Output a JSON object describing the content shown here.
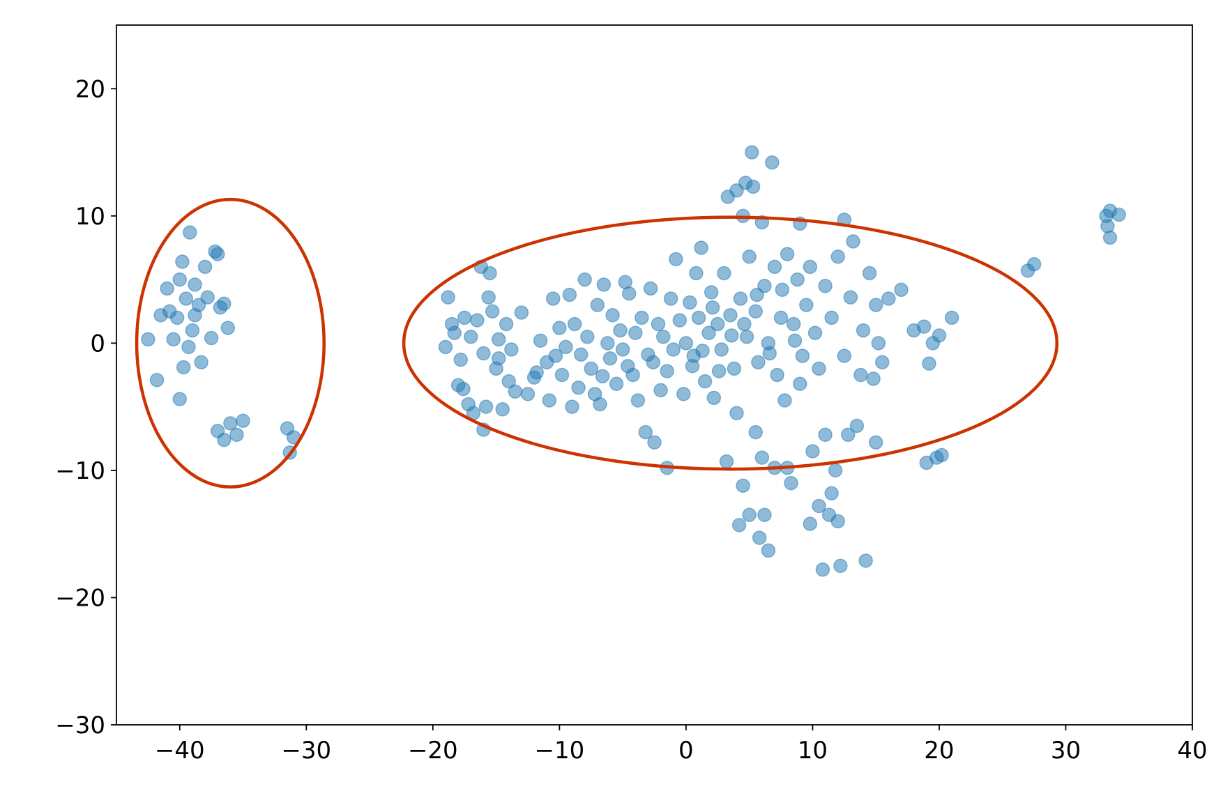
{
  "chart_data": {
    "type": "scatter",
    "color": "#1f77b4",
    "xlim": [
      -45,
      40
    ],
    "ylim": [
      -30,
      25
    ],
    "xticks": [
      {
        "value": -40,
        "label": "−40"
      },
      {
        "value": -30,
        "label": "−30"
      },
      {
        "value": -20,
        "label": "−20"
      },
      {
        "value": -10,
        "label": "−10"
      },
      0,
      10,
      20,
      30,
      40
    ],
    "yticks": [
      {
        "value": -30,
        "label": "−30"
      },
      {
        "value": -20,
        "label": "−20"
      },
      {
        "value": -10,
        "label": "−10"
      },
      0,
      10,
      20
    ],
    "ellipse_color": "#cc3300",
    "ellipses": [
      {
        "cx": -36,
        "cy": 0,
        "rx": 7.4,
        "ry": 11.3
      },
      {
        "cx": 3.5,
        "cy": 0,
        "rx": 25.8,
        "ry": 9.9
      }
    ],
    "x": [
      -42.5,
      -41.8,
      -41.5,
      -41,
      -40.8,
      -40.5,
      -40.2,
      -40,
      -40,
      -39.8,
      -39.5,
      -39.3,
      -39.2,
      -39,
      -38.8,
      -38.5,
      -38.3,
      -38,
      -37.8,
      -37.5,
      -37.2,
      -37,
      -36.8,
      -36.5,
      -36.2,
      -37,
      -36.5,
      -36,
      -35.5,
      -35,
      -31.5,
      -31.3,
      -31,
      -39.7,
      -38.8,
      -19,
      -18.8,
      -18.5,
      -18.3,
      -18,
      -17.8,
      -17.5,
      -17.2,
      -17,
      -16.8,
      -16.5,
      -16.2,
      -16,
      -15.8,
      -15.5,
      -15.3,
      -15,
      -14.8,
      -14.5,
      -14.2,
      -14,
      -13.5,
      -13,
      -12.5,
      -12,
      -16,
      -15.6,
      -14.8,
      -17.6,
      -13.8,
      -11.5,
      -11,
      -10.8,
      -10.5,
      -10,
      -9.8,
      -9.5,
      -9.2,
      -9,
      -8.8,
      -8.5,
      -8,
      -7.8,
      -7.5,
      -7.2,
      -7,
      -6.8,
      -6.5,
      -6.2,
      -6,
      -5.8,
      -5.5,
      -5.2,
      -5,
      -4.8,
      -4.5,
      -4.2,
      -4,
      -3.8,
      -3.5,
      -3.2,
      -3,
      -2.8,
      -2.5,
      -2.2,
      -2,
      -11.8,
      -10.3,
      -8.3,
      -6.6,
      -4.6,
      -2.6,
      -1.8,
      -1.5,
      -1.5,
      -1.2,
      -1,
      -0.8,
      -0.5,
      -0.2,
      0,
      0.3,
      0.5,
      0.8,
      1,
      1.2,
      1.5,
      1.8,
      2,
      2.2,
      2.5,
      2.8,
      3,
      3.2,
      3.3,
      3.5,
      3.8,
      4,
      4,
      4.2,
      4.3,
      4.5,
      4.5,
      4.7,
      4.8,
      5,
      5,
      5.2,
      5.3,
      5.5,
      5.5,
      5.7,
      5.8,
      6,
      6,
      6.2,
      6.2,
      6.5,
      6.5,
      6.8,
      7,
      7,
      7.2,
      7.5,
      7.8,
      8,
      8,
      8.3,
      8.5,
      8.8,
      9,
      9,
      9.2,
      9.5,
      9.8,
      9.8,
      10,
      10.2,
      10.5,
      10.5,
      10.8,
      11,
      11,
      11.3,
      11.5,
      11.5,
      11.8,
      12,
      12,
      12.2,
      12.5,
      12.5,
      12.8,
      13,
      13.2,
      13.5,
      13.8,
      14,
      14.2,
      14.5,
      14.8,
      15,
      15,
      15.2,
      15.5,
      16,
      17,
      18,
      18.8,
      19,
      19.2,
      19.5,
      19.8,
      20,
      20.2,
      21,
      27,
      27.5,
      33.2,
      33.3,
      33.5,
      33.5,
      34.2,
      0.6,
      2.6,
      4.6,
      6.6,
      8.6,
      3.6,
      5.6,
      7.6,
      2.1,
      1.3
    ],
    "values": [
      0.3,
      -2.9,
      2.2,
      4.3,
      2.5,
      0.3,
      2,
      -4.4,
      5,
      6.4,
      3.5,
      -0.3,
      8.7,
      1,
      4.6,
      3,
      -1.5,
      6,
      3.6,
      0.4,
      7.2,
      7,
      2.8,
      3.1,
      1.2,
      -6.9,
      -7.6,
      -6.3,
      -7.2,
      -6.1,
      -6.7,
      -8.6,
      -7.4,
      -1.9,
      2.2,
      -0.3,
      3.6,
      1.5,
      0.8,
      -3.3,
      -1.3,
      2,
      -4.8,
      0.5,
      -5.5,
      1.8,
      6,
      -0.8,
      -5,
      5.5,
      2.5,
      -2,
      0.3,
      -5.2,
      1.5,
      -3,
      -3.8,
      2.4,
      -4,
      -2.7,
      -6.8,
      3.6,
      -1.2,
      -3.6,
      -0.5,
      0.2,
      -1.5,
      -4.5,
      3.5,
      1.2,
      -2.5,
      -0.3,
      3.8,
      -5,
      1.5,
      -3.5,
      5,
      0.5,
      -2,
      -4,
      3,
      -4.8,
      4.6,
      0,
      -1.2,
      2.2,
      -3.2,
      1,
      -0.5,
      4.8,
      3.9,
      -2.5,
      0.8,
      -4.5,
      2,
      -7,
      -0.9,
      4.3,
      -7.8,
      1.5,
      -3.7,
      -2.3,
      -1,
      -0.9,
      -2.6,
      -1.8,
      -1.5,
      0.5,
      -2.2,
      -9.8,
      3.5,
      -0.5,
      6.6,
      1.8,
      -4,
      0,
      3.2,
      -1.8,
      5.5,
      2,
      7.5,
      -3,
      0.8,
      4,
      -4.3,
      1.5,
      -0.5,
      5.5,
      -9.3,
      11.5,
      2.2,
      -2,
      12,
      -5.5,
      -14.3,
      3.5,
      10,
      -11.2,
      12.6,
      0.5,
      -13.5,
      6.8,
      15,
      12.3,
      -7,
      2.5,
      -1.5,
      -15.3,
      9.5,
      -9,
      -13.5,
      4.5,
      -16.3,
      0,
      14.2,
      -9.8,
      6,
      -2.5,
      2,
      -4.5,
      7,
      -9.8,
      -11,
      1.5,
      5,
      9.4,
      -3.2,
      -1,
      3,
      -14.2,
      6,
      -8.5,
      0.8,
      -12.8,
      -2,
      -17.8,
      4.5,
      -7.2,
      -13.5,
      2,
      -11.8,
      -10,
      -14,
      6.8,
      -17.5,
      9.7,
      -1,
      -7.2,
      3.6,
      8,
      -6.5,
      -2.5,
      1,
      -17.1,
      5.5,
      -2.8,
      -7.8,
      3,
      0,
      -1.5,
      3.5,
      4.2,
      1,
      1.3,
      -9.4,
      -1.6,
      0,
      -9,
      0.6,
      -8.8,
      2,
      5.7,
      6.2,
      10,
      9.2,
      8.3,
      10.4,
      10.1,
      -1,
      -2.2,
      1.5,
      -0.8,
      0.2,
      0.6,
      3.8,
      4.2,
      2.8,
      -0.6
    ]
  }
}
